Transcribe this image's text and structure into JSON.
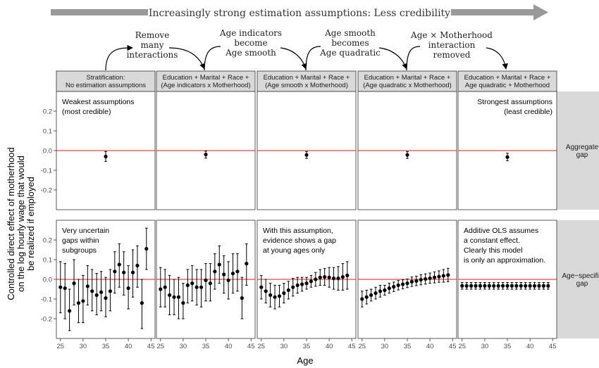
{
  "banner": "Increasingly strong estimation assumptions: Less credibility",
  "transitions": [
    [
      "Remove",
      "many",
      "interactions"
    ],
    [
      "Age indicators",
      "become",
      "Age smooth"
    ],
    [
      "Age smooth",
      "becomes",
      "Age quadratic"
    ],
    [
      "Age × Motherhood",
      "interaction",
      "removed"
    ]
  ],
  "y_axis_title": [
    "Controlled direct effect of motherhood",
    "on the log hourly wage that would",
    "be realized if employed"
  ],
  "x_axis_title": "Age",
  "colors": {
    "zero_line": "#e41a1c",
    "strip_fill": "#d9d9d9",
    "point": "#000000",
    "banner_arrow": "#999999"
  },
  "chart_data": {
    "type": "scatter",
    "x_ticks": [
      25,
      30,
      35,
      40,
      45
    ],
    "y_ticks_labels": [
      "0.2",
      "0.1",
      "0.0",
      "-0.1",
      "-0.2"
    ],
    "y_ticks": [
      0.2,
      0.1,
      0.0,
      -0.1,
      -0.2
    ],
    "ylim": [
      -0.3,
      0.3
    ],
    "xlim": [
      24.1,
      45.9
    ],
    "columns": [
      {
        "strip": [
          "Stratification:",
          "No estimation assumptions"
        ]
      },
      {
        "strip": [
          "Education + Marital + Race +",
          "(Age indicators x Motherhood)"
        ]
      },
      {
        "strip": [
          "Education + Marital + Race +",
          "(Age smooth x Motherhood)"
        ]
      },
      {
        "strip": [
          "Education + Marital + Race +",
          "(Age quadratic x Motherhood)"
        ]
      },
      {
        "strip": [
          "Education + Marital + Race +",
          "Age quadratic + Motherhood"
        ]
      }
    ],
    "rows": [
      {
        "strip": [
          "Aggregate",
          "gap"
        ]
      },
      {
        "strip": [
          "Age−specific",
          "gap"
        ]
      }
    ],
    "annotations": [
      {
        "row": 0,
        "col": 0,
        "align": "left",
        "lines": [
          "Weakest assumptions",
          "(most credible)"
        ]
      },
      {
        "row": 0,
        "col": 4,
        "align": "right",
        "lines": [
          "Strongest assumptions",
          "(least credible)"
        ]
      },
      {
        "row": 1,
        "col": 0,
        "align": "left",
        "lines": [
          "Very uncertain",
          "gaps within",
          "subgroups"
        ]
      },
      {
        "row": 1,
        "col": 2,
        "align": "left",
        "lines": [
          "With this assumption,",
          "evidence shows a gap",
          "at young ages only"
        ]
      },
      {
        "row": 1,
        "col": 4,
        "align": "left",
        "lines": [
          "Additive OLS assumes",
          "a constant effect.",
          "Clearly this model",
          "is only an approximation."
        ]
      }
    ],
    "aggregate": [
      {
        "x": 35,
        "y": -0.03,
        "lo": -0.055,
        "hi": -0.005
      },
      {
        "x": 35,
        "y": -0.02,
        "lo": -0.038,
        "hi": -0.003
      },
      {
        "x": 35,
        "y": -0.022,
        "lo": -0.04,
        "hi": -0.005
      },
      {
        "x": 35,
        "y": -0.022,
        "lo": -0.04,
        "hi": -0.005
      },
      {
        "x": 35,
        "y": -0.033,
        "lo": -0.052,
        "hi": -0.013
      }
    ],
    "age_specific": [
      {
        "x": [
          25,
          26,
          27,
          28,
          29,
          30,
          31,
          32,
          33,
          34,
          35,
          36,
          37,
          38,
          39,
          40,
          41,
          42,
          43,
          44
        ],
        "y": [
          -0.04,
          -0.045,
          -0.16,
          -0.02,
          -0.12,
          -0.11,
          -0.035,
          -0.06,
          -0.08,
          -0.065,
          -0.095,
          -0.06,
          0.04,
          0.075,
          0.035,
          -0.045,
          0.035,
          0.07,
          -0.12,
          0.155
        ],
        "lo": [
          -0.17,
          -0.2,
          -0.26,
          -0.13,
          -0.22,
          -0.22,
          -0.13,
          -0.16,
          -0.18,
          -0.16,
          -0.19,
          -0.16,
          -0.07,
          -0.04,
          -0.08,
          -0.15,
          -0.09,
          -0.04,
          -0.25,
          0.05
        ],
        "hi": [
          0.09,
          0.08,
          -0.05,
          0.1,
          0.0,
          0.02,
          0.07,
          0.05,
          0.03,
          0.04,
          0.01,
          0.05,
          0.14,
          0.18,
          0.14,
          0.07,
          0.15,
          0.17,
          0.0,
          0.26
        ]
      },
      {
        "x": [
          25,
          26,
          27,
          28,
          29,
          30,
          31,
          32,
          33,
          34,
          35,
          36,
          37,
          38,
          39,
          40,
          41,
          42,
          43,
          44
        ],
        "y": [
          -0.05,
          -0.04,
          -0.08,
          -0.09,
          -0.09,
          -0.12,
          -0.03,
          -0.02,
          -0.04,
          -0.04,
          -0.005,
          -0.02,
          0.04,
          0.075,
          0.025,
          -0.005,
          0.03,
          0.04,
          -0.095,
          0.08
        ],
        "lo": [
          -0.14,
          -0.14,
          -0.18,
          -0.18,
          -0.2,
          -0.2,
          -0.12,
          -0.11,
          -0.13,
          -0.14,
          -0.11,
          -0.11,
          -0.05,
          -0.02,
          -0.07,
          -0.1,
          -0.07,
          -0.06,
          -0.2,
          -0.03
        ],
        "hi": [
          0.06,
          0.05,
          0.02,
          0.0,
          0.01,
          -0.02,
          0.05,
          0.07,
          0.05,
          0.05,
          0.08,
          0.08,
          0.13,
          0.17,
          0.12,
          0.09,
          0.13,
          0.13,
          0.01,
          0.18
        ]
      },
      {
        "x": [
          25,
          26,
          27,
          28,
          29,
          30,
          31,
          32,
          33,
          34,
          35,
          36,
          37,
          38,
          39,
          40,
          41,
          42,
          43,
          44
        ],
        "y": [
          -0.04,
          -0.06,
          -0.08,
          -0.09,
          -0.085,
          -0.07,
          -0.055,
          -0.04,
          -0.03,
          -0.025,
          -0.02,
          -0.01,
          0.0,
          0.01,
          0.012,
          0.01,
          0.005,
          0.005,
          0.012,
          0.02
        ],
        "lo": [
          -0.1,
          -0.12,
          -0.14,
          -0.15,
          -0.14,
          -0.12,
          -0.1,
          -0.085,
          -0.07,
          -0.06,
          -0.05,
          -0.04,
          -0.035,
          -0.03,
          -0.03,
          -0.04,
          -0.05,
          -0.055,
          -0.055,
          -0.05
        ],
        "hi": [
          0.02,
          0.0,
          -0.02,
          -0.03,
          -0.03,
          -0.02,
          -0.01,
          0.005,
          0.01,
          0.01,
          0.01,
          0.02,
          0.035,
          0.05,
          0.055,
          0.06,
          0.06,
          0.065,
          0.08,
          0.09
        ]
      },
      {
        "x": [
          25,
          26,
          27,
          28,
          29,
          30,
          31,
          32,
          33,
          34,
          35,
          36,
          37,
          38,
          39,
          40,
          41,
          42,
          43,
          44
        ],
        "y": [
          -0.1,
          -0.09,
          -0.08,
          -0.07,
          -0.06,
          -0.055,
          -0.045,
          -0.038,
          -0.03,
          -0.025,
          -0.02,
          -0.012,
          -0.008,
          -0.002,
          0.002,
          0.006,
          0.01,
          0.014,
          0.018,
          0.022
        ],
        "lo": [
          -0.14,
          -0.125,
          -0.11,
          -0.1,
          -0.09,
          -0.08,
          -0.07,
          -0.062,
          -0.054,
          -0.048,
          -0.042,
          -0.036,
          -0.032,
          -0.028,
          -0.024,
          -0.02,
          -0.018,
          -0.015,
          -0.014,
          -0.012
        ],
        "hi": [
          -0.06,
          -0.055,
          -0.05,
          -0.04,
          -0.03,
          -0.03,
          -0.02,
          -0.014,
          -0.006,
          -0.002,
          0.002,
          0.012,
          0.016,
          0.024,
          0.028,
          0.032,
          0.038,
          0.043,
          0.05,
          0.056
        ]
      },
      {
        "x": [
          25,
          26,
          27,
          28,
          29,
          30,
          31,
          32,
          33,
          34,
          35,
          36,
          37,
          38,
          39,
          40,
          41,
          42,
          43,
          44
        ],
        "y": [
          -0.033,
          -0.033,
          -0.033,
          -0.033,
          -0.033,
          -0.033,
          -0.033,
          -0.033,
          -0.033,
          -0.033,
          -0.033,
          -0.033,
          -0.033,
          -0.033,
          -0.033,
          -0.033,
          -0.033,
          -0.033,
          -0.033,
          -0.033
        ],
        "lo": [
          -0.05,
          -0.05,
          -0.05,
          -0.05,
          -0.05,
          -0.05,
          -0.05,
          -0.05,
          -0.05,
          -0.05,
          -0.05,
          -0.05,
          -0.05,
          -0.05,
          -0.05,
          -0.05,
          -0.05,
          -0.05,
          -0.05,
          -0.05
        ],
        "hi": [
          -0.016,
          -0.016,
          -0.016,
          -0.016,
          -0.016,
          -0.016,
          -0.016,
          -0.016,
          -0.016,
          -0.016,
          -0.016,
          -0.016,
          -0.016,
          -0.016,
          -0.016,
          -0.016,
          -0.016,
          -0.016,
          -0.016,
          -0.016
        ]
      }
    ]
  }
}
